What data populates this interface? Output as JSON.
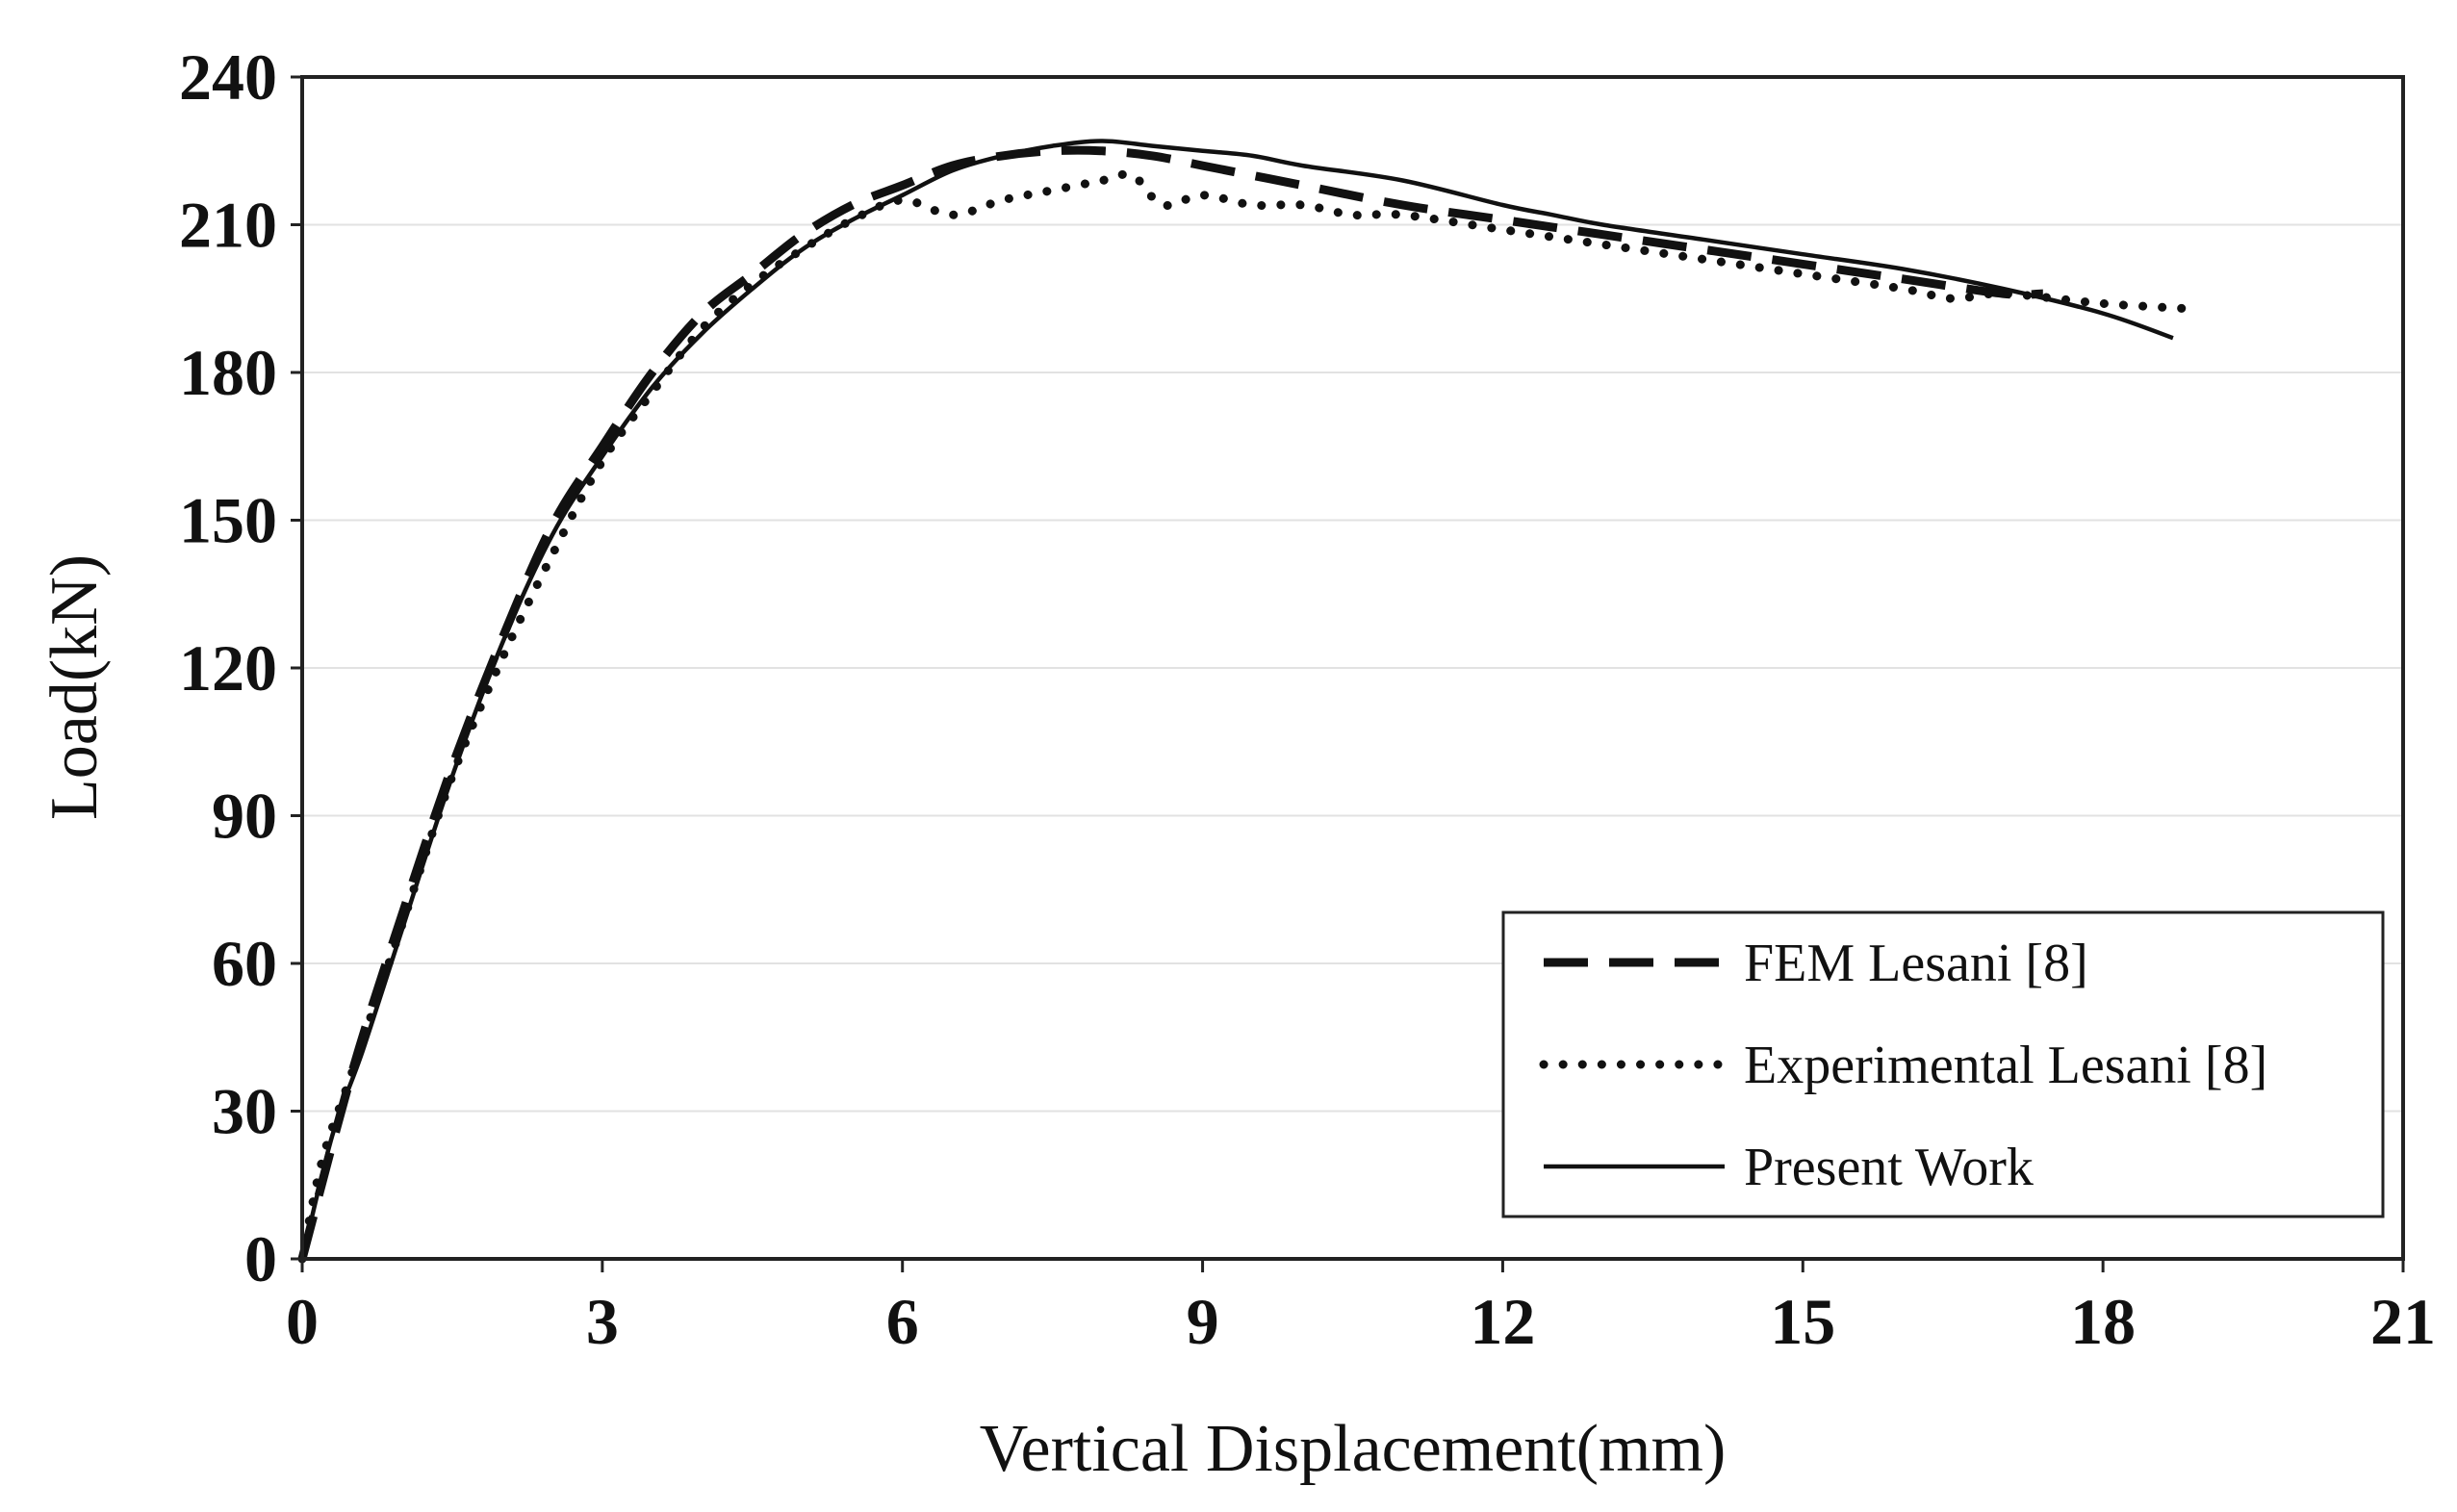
{
  "chart_data": {
    "type": "line",
    "title": "",
    "xlabel": "Vertical Displacement(mm)",
    "ylabel": "Load(kN)",
    "xlim": [
      0,
      21
    ],
    "ylim": [
      0,
      240
    ],
    "xticks": [
      0,
      3,
      6,
      9,
      12,
      15,
      18,
      21
    ],
    "yticks": [
      0,
      30,
      60,
      90,
      120,
      150,
      180,
      210,
      240
    ],
    "xtick_labels": [
      "0",
      "3",
      "6",
      "9",
      "12",
      "15",
      "18",
      "21"
    ],
    "ytick_labels": [
      "0",
      "30",
      "60",
      "90",
      "120",
      "150",
      "180",
      "210",
      "240"
    ],
    "grid": "horizontal",
    "legend_position": "bottom-right",
    "series": [
      {
        "name": "FEM Lesani [8]",
        "style": "dashed",
        "x": [
          0,
          0.5,
          1.0,
          1.5,
          2.0,
          2.5,
          3.0,
          3.5,
          4.0,
          4.5,
          5.0,
          5.5,
          6.0,
          6.5,
          7.0,
          7.5,
          8.0,
          8.5,
          9.0,
          9.5,
          10.0,
          11.0,
          12.0,
          13.0,
          14.0,
          15.0,
          16.0,
          17.0,
          17.4
        ],
        "y": [
          0,
          38,
          70,
          100,
          126,
          149,
          165,
          180,
          192,
          200,
          208,
          214,
          218,
          222,
          224,
          225,
          225,
          224,
          222,
          220,
          218,
          214,
          211,
          208,
          205,
          202,
          199,
          196,
          196
        ]
      },
      {
        "name": "Experimental Lesani [8]",
        "style": "dotted",
        "x": [
          0,
          0.2,
          0.5,
          1.0,
          1.5,
          2.0,
          2.5,
          3.0,
          3.5,
          4.0,
          4.5,
          5.0,
          5.5,
          6.0,
          6.5,
          7.0,
          7.5,
          8.0,
          8.3,
          8.6,
          9.0,
          9.5,
          10.0,
          10.5,
          11.0,
          12.0,
          13.0,
          14.0,
          15.0,
          16.0,
          16.5,
          17.0,
          18.0,
          18.8
        ],
        "y": [
          0,
          20,
          38,
          68,
          98,
          122,
          143,
          162,
          176,
          189,
          198,
          205,
          211,
          215,
          212,
          215,
          217,
          219,
          220,
          214,
          216,
          214,
          214,
          212,
          212,
          209,
          206,
          203,
          200,
          197,
          195,
          196,
          194,
          193
        ]
      },
      {
        "name": "Present Work",
        "style": "solid",
        "x": [
          0,
          0.3,
          0.6,
          1.0,
          1.5,
          2.0,
          2.5,
          3.0,
          3.5,
          4.0,
          4.5,
          5.0,
          5.5,
          6.0,
          6.5,
          7.0,
          7.5,
          8.0,
          8.5,
          9.0,
          9.5,
          10.0,
          11.0,
          12.0,
          12.5,
          13.0,
          14.0,
          15.0,
          16.0,
          17.0,
          18.0,
          18.7
        ],
        "y": [
          0,
          25,
          42,
          67,
          98,
          125,
          147,
          163,
          177,
          188,
          197,
          205,
          211,
          216,
          221,
          224,
          226,
          227,
          226,
          225,
          224,
          222,
          219,
          214,
          212,
          210,
          207,
          204,
          201,
          197,
          192,
          187
        ]
      }
    ]
  },
  "legend": {
    "items": [
      "FEM Lesani [8]",
      "Experimental Lesani [8]",
      "Present Work"
    ]
  }
}
